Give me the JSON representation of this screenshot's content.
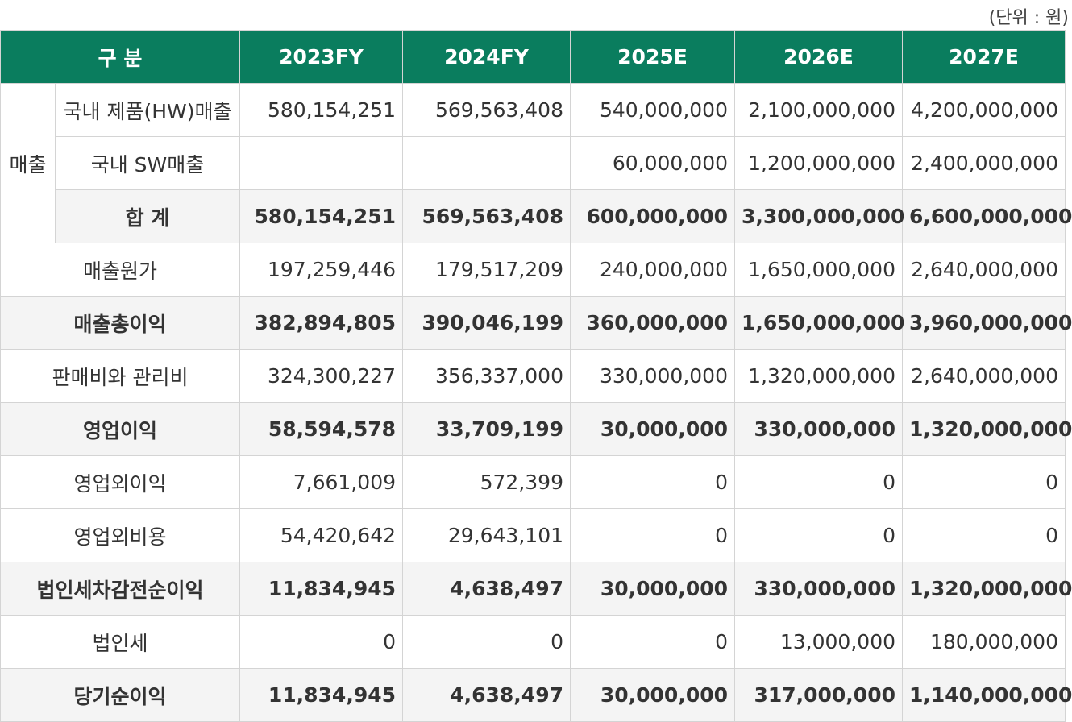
{
  "unit_note": "(단위 : 원)",
  "header": {
    "category": "구 분",
    "years": [
      "2023FY",
      "2024FY",
      "2025E",
      "2026E",
      "2027E"
    ]
  },
  "sales_group": {
    "label": "매출",
    "rows": [
      {
        "label": "국내 제품(HW)매출",
        "values": [
          "580,154,251",
          "569,563,408",
          "540,000,000",
          "2,100,000,000",
          "4,200,000,000"
        ]
      },
      {
        "label": "국내 SW매출",
        "values": [
          "",
          "",
          "60,000,000",
          "1,200,000,000",
          "2,400,000,000"
        ]
      },
      {
        "label": "합 계",
        "values": [
          "580,154,251",
          "569,563,408",
          "600,000,000",
          "3,300,000,000",
          "6,600,000,000"
        ]
      }
    ]
  },
  "rows": [
    {
      "label": "매출원가",
      "values": [
        "197,259,446",
        "179,517,209",
        "240,000,000",
        "1,650,000,000",
        "2,640,000,000"
      ]
    },
    {
      "label": "매출총이익",
      "values": [
        "382,894,805",
        "390,046,199",
        "360,000,000",
        "1,650,000,000",
        "3,960,000,000"
      ]
    },
    {
      "label": "판매비와 관리비",
      "values": [
        "324,300,227",
        "356,337,000",
        "330,000,000",
        "1,320,000,000",
        "2,640,000,000"
      ]
    },
    {
      "label": "영업이익",
      "values": [
        "58,594,578",
        "33,709,199",
        "30,000,000",
        "330,000,000",
        "1,320,000,000"
      ]
    },
    {
      "label": "영업외이익",
      "values": [
        "7,661,009",
        "572,399",
        "0",
        "0",
        "0"
      ]
    },
    {
      "label": "영업외비용",
      "values": [
        "54,420,642",
        "29,643,101",
        "0",
        "0",
        "0"
      ]
    },
    {
      "label": "법인세차감전순이익",
      "values": [
        "11,834,945",
        "4,638,497",
        "30,000,000",
        "330,000,000",
        "1,320,000,000"
      ]
    },
    {
      "label": "법인세",
      "values": [
        "0",
        "0",
        "0",
        "13,000,000",
        "180,000,000"
      ]
    },
    {
      "label": "당기순이익",
      "values": [
        "11,834,945",
        "4,638,497",
        "30,000,000",
        "317,000,000",
        "1,140,000,000"
      ]
    }
  ],
  "colors": {
    "header_bg": "#0a7d5e",
    "total_row_bg": "#f4f4f4",
    "border": "#d4d4d4"
  }
}
